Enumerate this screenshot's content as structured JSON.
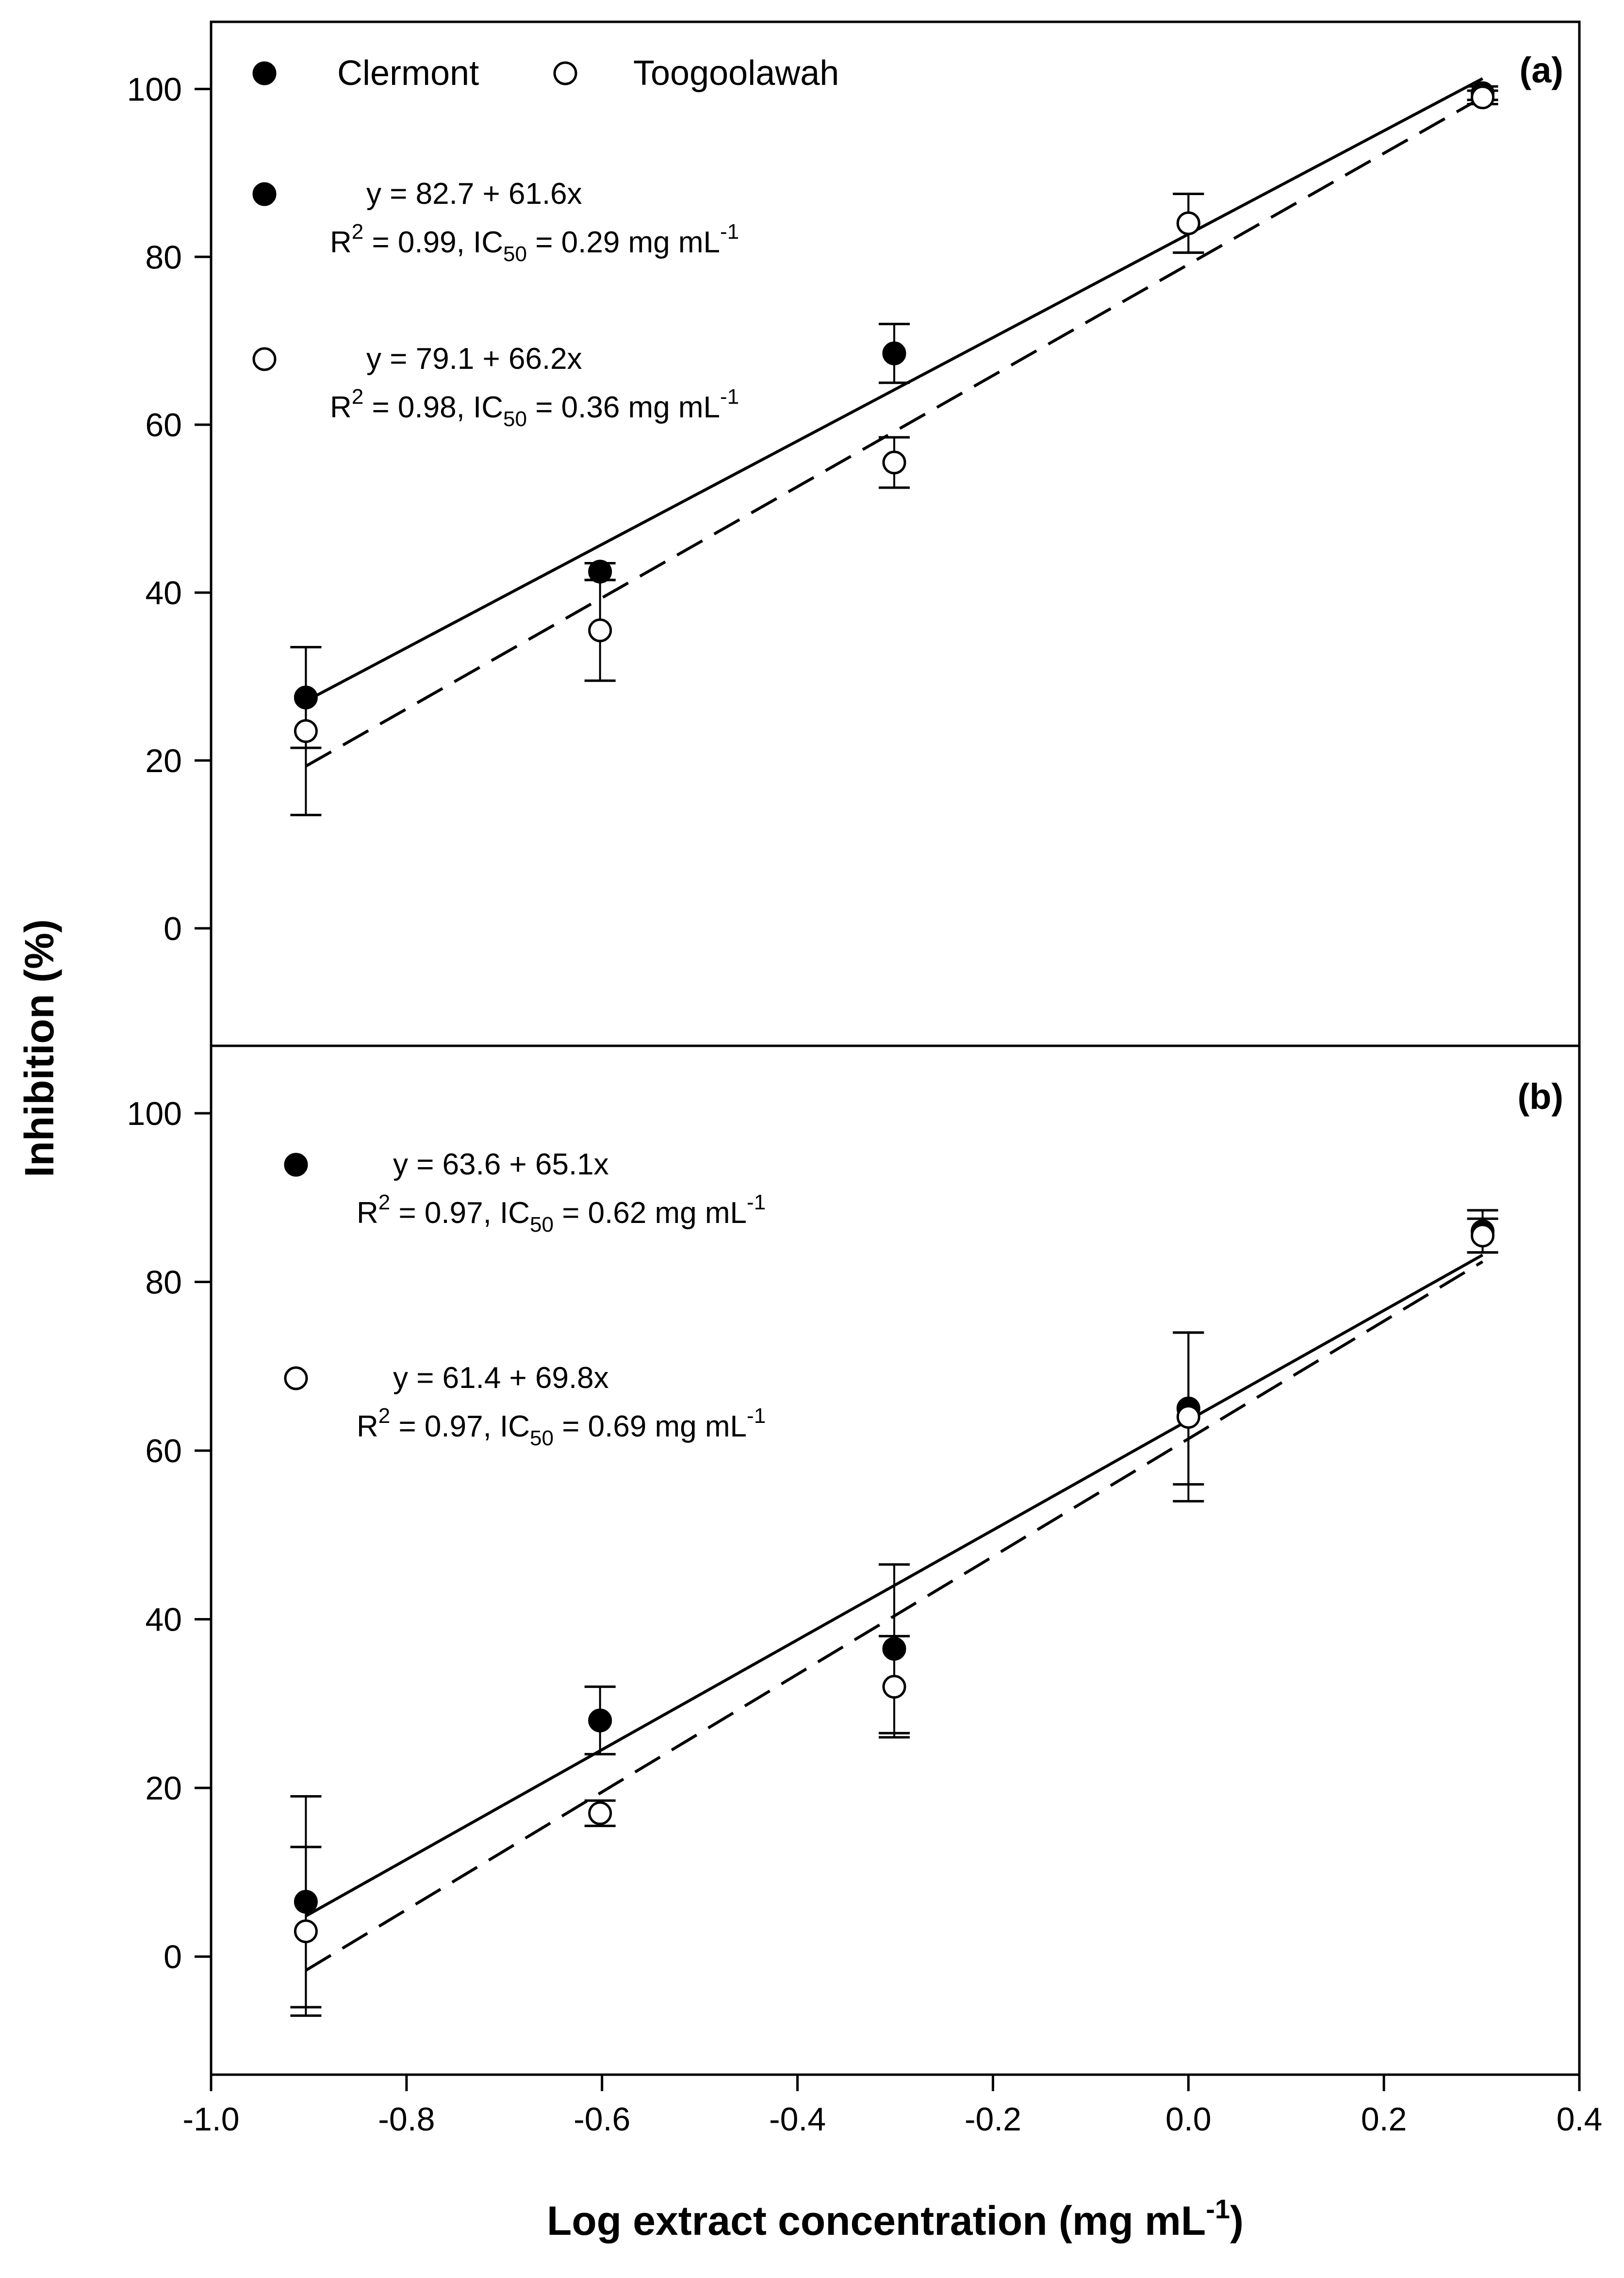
{
  "chart_data": [
    {
      "panel": "(a)",
      "type": "scatter",
      "xlim": [
        -1.0,
        0.4
      ],
      "ylim": [
        -14,
        108
      ],
      "yticks": [
        0,
        20,
        40,
        60,
        80,
        100
      ],
      "legend": [
        {
          "name": "Clermont",
          "marker": "filled-circle"
        },
        {
          "name": "Toogoolawah",
          "marker": "open-circle"
        }
      ],
      "series": [
        {
          "name": "Clermont",
          "marker": "filled",
          "line": "solid",
          "x": [
            -0.903,
            -0.602,
            -0.301,
            0.0,
            0.301
          ],
          "y": [
            27.5,
            42.5,
            68.5,
            84.0,
            99.5
          ],
          "err": [
            6.0,
            1.0,
            3.5,
            3.5,
            0.8
          ],
          "fit": {
            "intercept": 82.7,
            "slope": 61.6
          },
          "equation": "y = 82.7 + 61.6x",
          "r2_prefix": "R",
          "r2_sup": "2",
          "r2_value": " = 0.99, IC",
          "ic_sub": "50",
          "ic_value": " = 0.29 mg mL",
          "ic_sup": "-1"
        },
        {
          "name": "Toogoolawah",
          "marker": "open",
          "line": "dashed",
          "x": [
            -0.903,
            -0.602,
            -0.301,
            0.0,
            0.301
          ],
          "y": [
            23.5,
            35.5,
            55.5,
            84.0,
            99.0
          ],
          "err": [
            10.0,
            6.0,
            3.0,
            3.5,
            0.8
          ],
          "fit": {
            "intercept": 79.1,
            "slope": 66.2
          },
          "equation": "y = 79.1 + 66.2x",
          "r2_prefix": "R",
          "r2_sup": "2",
          "r2_value": " = 0.98, IC",
          "ic_sub": "50",
          "ic_value": " = 0.36 mg mL",
          "ic_sup": "-1"
        }
      ]
    },
    {
      "panel": "(b)",
      "type": "scatter",
      "xlim": [
        -1.0,
        0.4
      ],
      "ylim": [
        -14,
        108
      ],
      "yticks": [
        0,
        20,
        40,
        60,
        80,
        100
      ],
      "series": [
        {
          "name": "Clermont",
          "marker": "filled",
          "line": "solid",
          "x": [
            -0.903,
            -0.602,
            -0.301,
            0.0,
            0.301
          ],
          "y": [
            6.5,
            28.0,
            36.5,
            65.0,
            86.0
          ],
          "err": [
            12.5,
            4.0,
            10.0,
            9.0,
            2.5
          ],
          "fit": {
            "intercept": 63.6,
            "slope": 65.1
          },
          "equation": "y = 63.6 + 65.1x",
          "r2_prefix": "R",
          "r2_sup": "2",
          "r2_value": " = 0.97, IC",
          "ic_sub": "50",
          "ic_value": " = 0.62 mg mL",
          "ic_sup": "-1"
        },
        {
          "name": "Toogoolawah",
          "marker": "open",
          "line": "dashed",
          "x": [
            -0.903,
            -0.602,
            -0.301,
            0.0,
            0.301
          ],
          "y": [
            3.0,
            17.0,
            32.0,
            64.0,
            85.5
          ],
          "err": [
            10.0,
            1.5,
            6.0,
            10.0,
            2.0
          ],
          "fit": {
            "intercept": 61.4,
            "slope": 69.8
          },
          "equation": "y = 61.4 + 69.8x",
          "r2_prefix": "R",
          "r2_sup": "2",
          "r2_value": " = 0.97, IC",
          "ic_sub": "50",
          "ic_value": " = 0.69 mg mL",
          "ic_sup": "-1"
        }
      ]
    }
  ],
  "axes": {
    "xticks": [
      -1.0,
      -0.8,
      -0.6,
      -0.4,
      -0.2,
      0.0,
      0.2,
      0.4
    ],
    "xtick_labels": [
      "-1.0",
      "-0.8",
      "-0.6",
      "-0.4",
      "-0.2",
      "0.0",
      "0.2",
      "0.4"
    ],
    "ylabel": "Inhibition (%)",
    "xlabel_main": "Log extract concentration (mg mL",
    "xlabel_sup": "-1",
    "xlabel_close": ")"
  }
}
